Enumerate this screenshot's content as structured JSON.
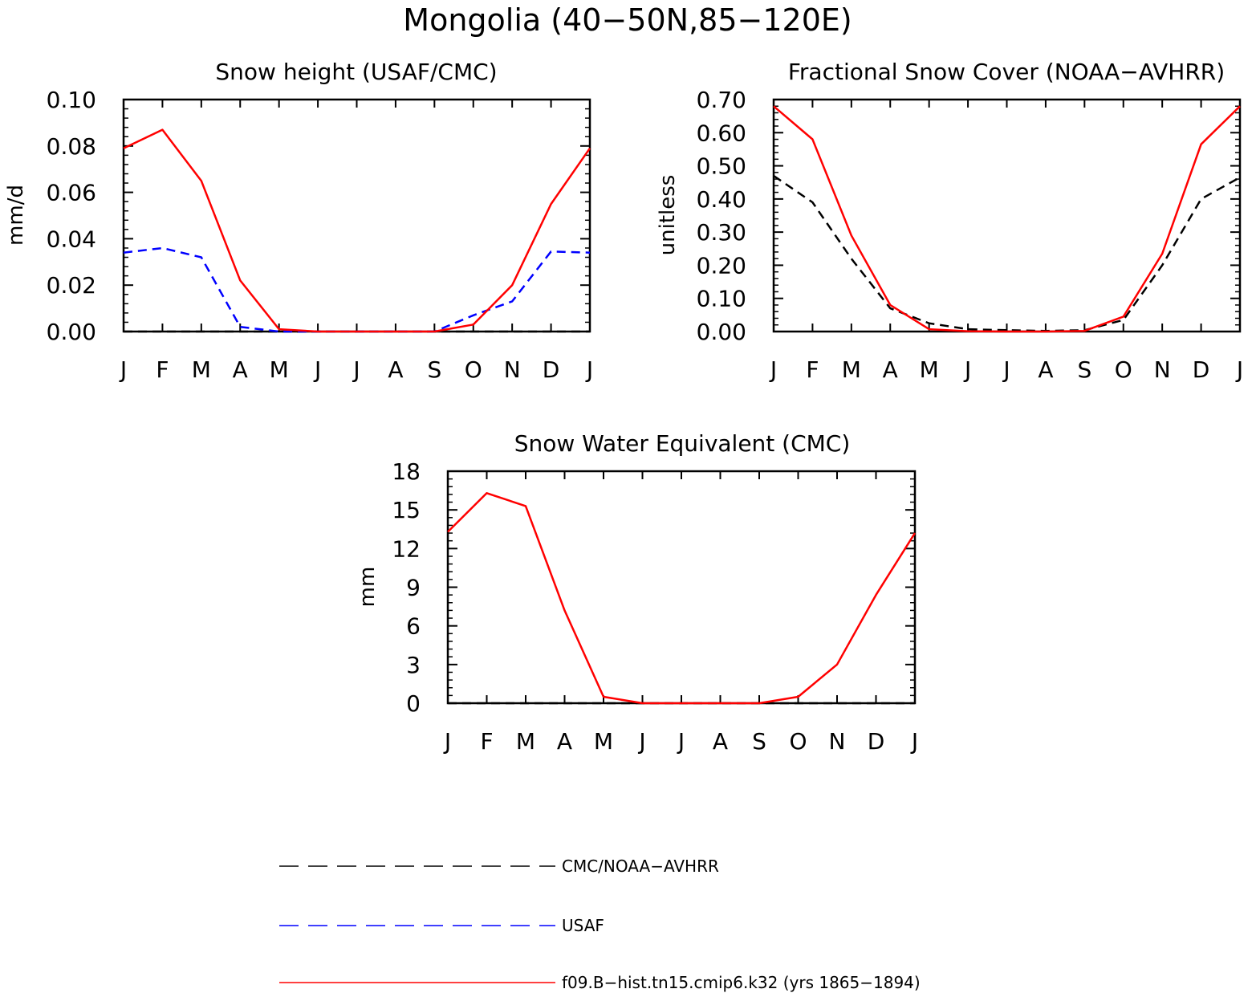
{
  "figure": {
    "title": "Mongolia (40−50N,85−120E)"
  },
  "chart_data": [
    {
      "type": "line",
      "title": "Snow height (USAF/CMC)",
      "xlabel": "",
      "ylabel": "mm/d",
      "x": [
        "J",
        "F",
        "M",
        "A",
        "M",
        "J",
        "J",
        "A",
        "S",
        "O",
        "N",
        "D",
        "J"
      ],
      "ylim": [
        0,
        0.1
      ],
      "yticks": [
        "0.00",
        "0.02",
        "0.04",
        "0.06",
        "0.08",
        "0.10"
      ],
      "grid": false,
      "series": [
        {
          "name": "CMC/NOAA-AVHRR",
          "color": "#000000",
          "dash": true,
          "values": [
            0,
            0,
            0,
            0,
            0,
            0,
            0,
            0,
            0,
            0,
            0,
            0,
            0
          ]
        },
        {
          "name": "USAF",
          "color": "#0000ff",
          "dash": true,
          "values": [
            0.034,
            0.036,
            0.032,
            0.002,
            0.0,
            0.0,
            0.0,
            0.0,
            0.0,
            0.007,
            0.013,
            0.0345,
            0.034
          ]
        },
        {
          "name": "f09.B−hist.tn15.cmip6.k32 (yrs 1865−1894)",
          "color": "#ff0000",
          "dash": false,
          "values": [
            0.079,
            0.087,
            0.065,
            0.022,
            0.001,
            0.0,
            0.0,
            0.0,
            0.0,
            0.003,
            0.02,
            0.055,
            0.079
          ]
        }
      ]
    },
    {
      "type": "line",
      "title": "Fractional Snow Cover (NOAA−AVHRR)",
      "xlabel": "",
      "ylabel": "unitless",
      "x": [
        "J",
        "F",
        "M",
        "A",
        "M",
        "J",
        "J",
        "A",
        "S",
        "O",
        "N",
        "D",
        "J"
      ],
      "ylim": [
        0,
        0.7
      ],
      "yticks": [
        "0.00",
        "0.10",
        "0.20",
        "0.30",
        "0.40",
        "0.50",
        "0.60",
        "0.70"
      ],
      "grid": false,
      "series": [
        {
          "name": "CMC/NOAA-AVHRR",
          "color": "#000000",
          "dash": true,
          "values": [
            0.47,
            0.39,
            0.22,
            0.07,
            0.025,
            0.007,
            0.004,
            0.002,
            0.004,
            0.035,
            0.2,
            0.4,
            0.465
          ]
        },
        {
          "name": "f09.B−hist.tn15.cmip6.k32 (yrs 1865−1894)",
          "color": "#ff0000",
          "dash": false,
          "values": [
            0.68,
            0.58,
            0.29,
            0.08,
            0.007,
            0.001,
            0.0,
            0.0,
            0.002,
            0.045,
            0.235,
            0.565,
            0.68
          ]
        }
      ]
    },
    {
      "type": "line",
      "title": "Snow Water Equivalent (CMC)",
      "xlabel": "",
      "ylabel": "mm",
      "x": [
        "J",
        "F",
        "M",
        "A",
        "M",
        "J",
        "J",
        "A",
        "S",
        "O",
        "N",
        "D",
        "J"
      ],
      "ylim": [
        0,
        18
      ],
      "yticks": [
        "0",
        "3",
        "6",
        "9",
        "12",
        "15",
        "18"
      ],
      "grid": false,
      "series": [
        {
          "name": "CMC/NOAA-AVHRR",
          "color": "#000000",
          "dash": true,
          "values": [
            0,
            0,
            0,
            0,
            0,
            0,
            0,
            0,
            0,
            0,
            0,
            0,
            0
          ]
        },
        {
          "name": "f09.B−hist.tn15.cmip6.k32 (yrs 1865−1894)",
          "color": "#ff0000",
          "dash": false,
          "values": [
            13.3,
            16.3,
            15.3,
            7.2,
            0.5,
            0.0,
            0.0,
            0.0,
            0.0,
            0.5,
            3.0,
            8.4,
            13.2
          ]
        }
      ]
    }
  ],
  "legend": [
    {
      "label": "CMC/NOAA−AVHRR",
      "color": "#000000",
      "dash": true
    },
    {
      "label": "USAF",
      "color": "#0000ff",
      "dash": true
    },
    {
      "label": "f09.B−hist.tn15.cmip6.k32 (yrs 1865−1894)",
      "color": "#ff0000",
      "dash": false
    }
  ]
}
